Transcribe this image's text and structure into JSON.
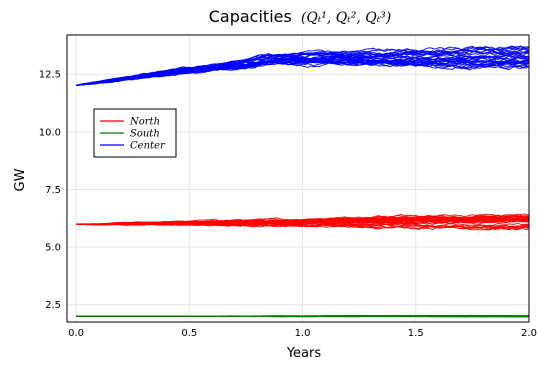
{
  "chart_data": {
    "type": "line",
    "title": "Capacities",
    "title_math": "(Qₜ¹, Qₜ², Qₜ³)",
    "xlabel": "Years",
    "ylabel": "GW",
    "xlim": [
      -0.04,
      2.0
    ],
    "ylim": [
      1.75,
      14.2
    ],
    "xticks": [
      0.0,
      0.5,
      1.0,
      1.5,
      2.0
    ],
    "xtick_labels": [
      "0.0",
      "0.5",
      "1.0",
      "1.5",
      "2.0"
    ],
    "yticks": [
      2.5,
      5.0,
      7.5,
      10.0,
      12.5
    ],
    "ytick_labels": [
      "2.5",
      "5.0",
      "7.5",
      "10.0",
      "12.5"
    ],
    "grid": true,
    "legend_position": "top-left",
    "series": [
      {
        "name": "North",
        "color": "#ff0000",
        "paths": 30,
        "x": [
          0.0,
          0.1,
          0.25,
          0.5,
          0.75,
          1.0,
          1.25,
          1.5,
          1.75,
          2.0
        ],
        "y": [
          6.0,
          5.98,
          6.02,
          6.03,
          6.05,
          6.05,
          6.07,
          6.08,
          6.08,
          6.08
        ],
        "spread_end": 0.3
      },
      {
        "name": "South",
        "color": "#008000",
        "paths": 30,
        "x": [
          0.0,
          0.5,
          1.0,
          1.5,
          2.0
        ],
        "y": [
          2.0,
          2.0,
          2.0,
          2.01,
          2.0
        ],
        "spread_end": 0.03
      },
      {
        "name": "Center",
        "color": "#0000ff",
        "paths": 30,
        "x": [
          0.0,
          0.1,
          0.25,
          0.5,
          0.75,
          0.85,
          1.0,
          1.25,
          1.5,
          1.75,
          2.0
        ],
        "y": [
          12.02,
          12.15,
          12.35,
          12.7,
          12.95,
          13.15,
          13.2,
          13.22,
          13.22,
          13.25,
          13.3
        ],
        "spread_end": 0.45
      }
    ]
  }
}
